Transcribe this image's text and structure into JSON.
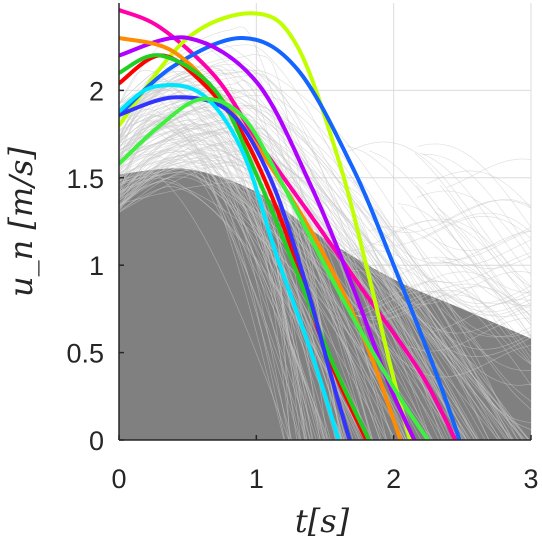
{
  "chart_data": {
    "type": "line",
    "xlabel": "t[s]",
    "ylabel": "u_n [m/s]",
    "xlim": [
      0,
      3
    ],
    "ylim": [
      0,
      2.5
    ],
    "grid": true,
    "x_ticks": [
      0,
      1,
      2,
      3
    ],
    "x_tick_labels": [
      "0",
      "1",
      "2",
      "3"
    ],
    "y_ticks": [
      0,
      0.5,
      1,
      1.5,
      2
    ],
    "y_tick_labels": [
      "0",
      "0.5",
      "1",
      "1.5",
      "2"
    ],
    "background_band": {
      "color": "#808080",
      "x": [
        0,
        0.5,
        1.0,
        1.5,
        2.0,
        2.5,
        3.0
      ],
      "upper": [
        1.52,
        1.55,
        1.42,
        1.15,
        0.92,
        0.75,
        0.58
      ]
    },
    "background_trace_color": "#c8c8c8",
    "highlighted_series": [
      {
        "color": "#ff00aa",
        "x": [
          0,
          0.3,
          0.7,
          1.0,
          1.4,
          1.8,
          2.2,
          2.45
        ],
        "y": [
          2.46,
          2.36,
          2.08,
          1.72,
          1.28,
          0.83,
          0.38,
          0.0
        ]
      },
      {
        "color": "#c0ff00",
        "x": [
          0,
          0.5,
          1.0,
          1.3,
          1.6,
          1.8,
          2.0,
          2.12
        ],
        "y": [
          1.8,
          2.3,
          2.44,
          2.25,
          1.6,
          1.0,
          0.35,
          0.0
        ]
      },
      {
        "color": "#1464ff",
        "x": [
          0,
          0.4,
          0.9,
          1.3,
          1.7,
          2.0,
          2.3,
          2.48
        ],
        "y": [
          1.86,
          2.14,
          2.3,
          2.12,
          1.56,
          1.0,
          0.4,
          0.0
        ]
      },
      {
        "color": "#b000ff",
        "x": [
          0,
          0.5,
          1.0,
          1.4,
          1.7,
          1.95,
          2.15
        ],
        "y": [
          2.2,
          2.3,
          2.05,
          1.45,
          0.88,
          0.35,
          0.0
        ]
      },
      {
        "color": "#ff8c00",
        "x": [
          0,
          0.4,
          0.8,
          1.2,
          1.5,
          1.8,
          2.05
        ],
        "y": [
          2.3,
          2.22,
          1.9,
          1.45,
          1.05,
          0.55,
          0.0
        ]
      },
      {
        "color": "#ff0000",
        "x": [
          0,
          0.3,
          0.6,
          0.9,
          1.2,
          1.5,
          1.8
        ],
        "y": [
          2.04,
          2.2,
          2.05,
          1.75,
          1.22,
          0.52,
          0.0
        ]
      },
      {
        "color": "#20d020",
        "x": [
          0,
          0.3,
          0.7,
          1.0,
          1.3,
          1.55,
          1.82
        ],
        "y": [
          2.1,
          2.2,
          2.0,
          1.52,
          0.95,
          0.45,
          0.0
        ]
      },
      {
        "color": "#3333ff",
        "x": [
          0,
          0.4,
          0.8,
          1.1,
          1.35,
          1.55,
          1.68
        ],
        "y": [
          1.86,
          1.96,
          1.88,
          1.5,
          0.92,
          0.35,
          0.0
        ]
      },
      {
        "color": "#00e5ff",
        "x": [
          0,
          0.25,
          0.6,
          0.9,
          1.15,
          1.4,
          1.6
        ],
        "y": [
          1.88,
          2.02,
          1.98,
          1.65,
          1.05,
          0.5,
          0.0
        ]
      },
      {
        "color": "#40f040",
        "x": [
          0,
          0.3,
          0.6,
          0.9,
          1.2,
          1.6,
          2.0,
          2.25
        ],
        "y": [
          1.58,
          1.8,
          1.95,
          1.85,
          1.45,
          0.85,
          0.3,
          0.0
        ]
      }
    ]
  }
}
